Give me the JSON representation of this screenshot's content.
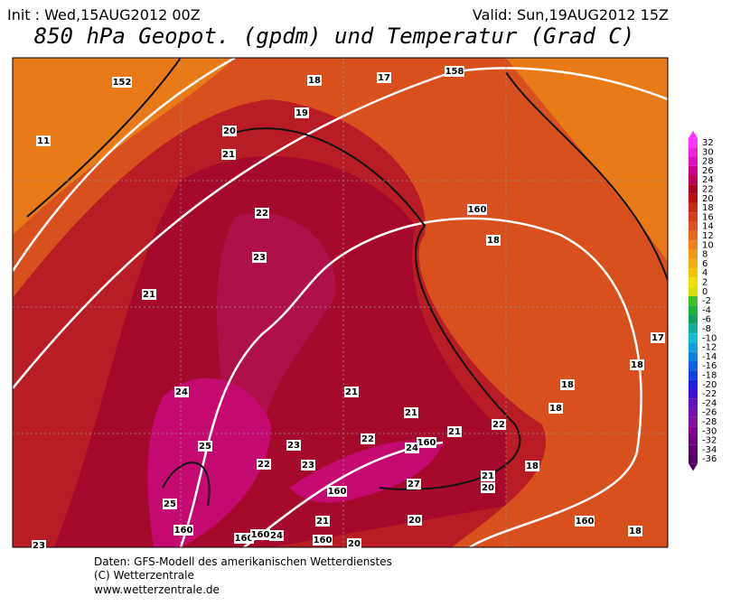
{
  "header": {
    "init": "Init : Wed,15AUG2012 00Z",
    "valid": "Valid: Sun,19AUG2012 15Z",
    "title": "850 hPa Geopot. (gpdm) und Temperatur (Grad C)"
  },
  "contour_labels": [
    "152",
    "158",
    "160",
    "160",
    "160",
    "160",
    "160",
    "160",
    "160",
    "160",
    "11",
    "18",
    "17",
    "19",
    "20",
    "21",
    "22",
    "23",
    "21",
    "18",
    "17",
    "18",
    "18",
    "18",
    "21",
    "21",
    "21",
    "22",
    "24",
    "25",
    "23",
    "22",
    "24",
    "22",
    "23",
    "18",
    "21",
    "20",
    "27",
    "25",
    "21",
    "20",
    "24",
    "18",
    "23",
    "20"
  ],
  "colorbar": {
    "labels": [
      "32",
      "30",
      "28",
      "26",
      "24",
      "22",
      "20",
      "18",
      "16",
      "14",
      "12",
      "10",
      "8",
      "6",
      "4",
      "2",
      "0",
      "-2",
      "-4",
      "-6",
      "-8",
      "-10",
      "-12",
      "-14",
      "-16",
      "-18",
      "-20",
      "-22",
      "-24",
      "-26",
      "-28",
      "-30",
      "-32",
      "-34",
      "-36"
    ],
    "colors": [
      "#ff33ff",
      "#ee22dd",
      "#dd11bb",
      "#cc0088",
      "#bb0055",
      "#aa0022",
      "#b81010",
      "#c82818",
      "#d83c1c",
      "#e05020",
      "#e86820",
      "#f08018",
      "#f09810",
      "#f0b010",
      "#f0c800",
      "#f0e000",
      "#d8e000",
      "#40c020",
      "#20b040",
      "#10a060",
      "#10b0a0",
      "#10c0d0",
      "#10a0e0",
      "#1080e0",
      "#1060e0",
      "#1040e0",
      "#2020e0",
      "#4010d0",
      "#6010c0",
      "#7010b0",
      "#8010a0",
      "#800090",
      "#700080",
      "#600070",
      "#500060"
    ]
  },
  "footer": {
    "lines": [
      "Daten: GFS-Modell des amerikanischen Wetterdienstes",
      "(C) Wetterzentrale",
      "www.wetterzentrale.de"
    ]
  }
}
